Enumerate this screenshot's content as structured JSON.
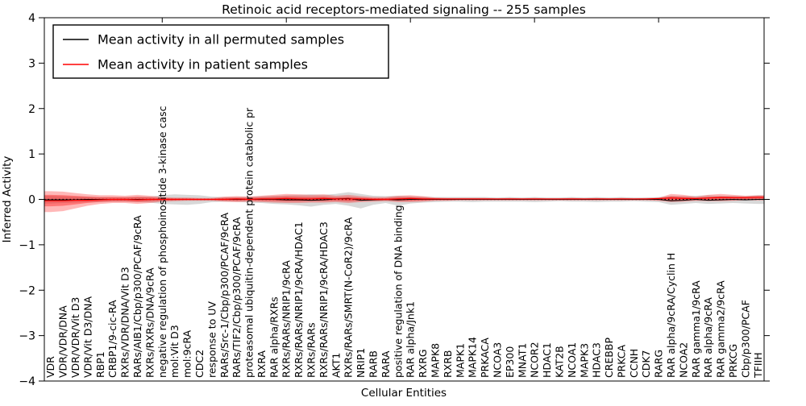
{
  "chart_data": {
    "type": "line",
    "title": "Retinoic acid receptors-mediated signaling -- 255 samples",
    "xlabel": "Cellular Entities",
    "ylabel": "Inferred Activity",
    "ylim": [
      -4,
      4
    ],
    "yticks": [
      -4,
      -3,
      -2,
      -1,
      0,
      1,
      2,
      3,
      4
    ],
    "grid": false,
    "legend_position": "upper left",
    "colors": {
      "permuted_line": "#000000",
      "patient_line": "#ff0000",
      "permuted_band": "#999999",
      "patient_band": "#ff0000",
      "zero_line": "#000000"
    },
    "categories": [
      "VDR",
      "VDR/VDR/DNA",
      "VDR/VDR/Vit D3",
      "VDR/Vit D3/DNA",
      "RBP1",
      "CRBP1/9-cic-RA",
      "RXRs/VDR/DNA/Vit D3",
      "RARs/AIB1/Cbp/p300/PCAF/9cRA",
      "RXRs/RXRs/DNA/9cRA",
      "negative regulation of phosphoinositide 3-kinase casc",
      "mol:Vit D3",
      "mol:9cRA",
      "CDC2",
      "response to UV",
      "RARs/Src-1/Cbp/p300/PCAF/9cRA",
      "RARs/TIF2/Cbp/p300/PCAF/9cRA",
      "proteasomal ubiquitin-dependent protein catabolic pr",
      "RXRA",
      "RAR alpha/RXRs",
      "RXRs/RARs/NRIP1/9cRA",
      "RXRs/RARs/NRIP1/9cRA/HDAC1",
      "RXRs/RARs",
      "RXRs/RARs/NRIP1/9cRA/HDAC3",
      "AKT1",
      "RXRs/RARs/SMRT(N-CoR2)/9cRA",
      "NRIP1",
      "RARB",
      "RARA",
      "positive regulation of DNA binding",
      "RAR alpha/Jnk1",
      "RXRG",
      "MAPK8",
      "RXRB",
      "MAPK1",
      "MAPK14",
      "PRKACA",
      "NCOA3",
      "EP300",
      "MNAT1",
      "NCOR2",
      "HDAC1",
      "KAT2B",
      "NCOA1",
      "MAPK3",
      "HDAC3",
      "CREBBP",
      "PRKCA",
      "CCNH",
      "CDK7",
      "RARG",
      "RAR alpha/9cRA/Cyclin H",
      "NCOA2",
      "RAR gamma1/9cRA",
      "RAR alpha/9cRA",
      "RAR gamma2/9cRA",
      "PRKCG",
      "Cbp/p300/PCAF",
      "TFIIH"
    ],
    "series": [
      {
        "name": "Mean activity in all permuted samples",
        "color": "#000000",
        "values": [
          -0.01,
          -0.01,
          -0.01,
          0,
          0,
          0,
          0,
          0,
          0,
          0,
          0,
          0,
          0,
          0,
          0,
          0,
          0,
          0,
          0,
          -0.01,
          -0.01,
          -0.02,
          -0.01,
          0.01,
          0.02,
          -0.02,
          -0.01,
          0,
          -0.01,
          0,
          0,
          0,
          0,
          0,
          0,
          0,
          0,
          0,
          0,
          0,
          0,
          0,
          0,
          0,
          0,
          0,
          0,
          0,
          0,
          0,
          -0.03,
          -0.02,
          0,
          -0.02,
          -0.01,
          0,
          -0.01,
          0
        ]
      },
      {
        "name": "Mean activity in patient samples",
        "color": "#ff0000",
        "values": [
          -0.03,
          -0.03,
          -0.02,
          -0.02,
          -0.01,
          0,
          0,
          -0.01,
          0,
          0,
          0,
          0,
          0,
          0,
          0,
          0.01,
          0,
          0.01,
          0.01,
          0.02,
          0.01,
          0.01,
          0.02,
          0.01,
          0.01,
          0.01,
          0,
          0,
          0.01,
          0.02,
          0.01,
          0.01,
          0.01,
          0.01,
          0.01,
          0.01,
          0.01,
          0.01,
          0.01,
          0.01,
          0.01,
          0.01,
          0.01,
          0.01,
          0.01,
          0.01,
          0.01,
          0.01,
          0.01,
          0.02,
          0.03,
          0.02,
          0.02,
          0.03,
          0.04,
          0.04,
          0.04,
          0.05
        ]
      }
    ],
    "bands": [
      {
        "name": "permuted-samples-range",
        "color": "#999999",
        "opacity": 0.38,
        "upper": [
          0.08,
          0.07,
          0.06,
          0.06,
          0.05,
          0.05,
          0.05,
          0.06,
          0.06,
          0.09,
          0.11,
          0.1,
          0.09,
          0.06,
          0.05,
          0.05,
          0.06,
          0.07,
          0.08,
          0.09,
          0.1,
          0.11,
          0.1,
          0.12,
          0.16,
          0.12,
          0.08,
          0.07,
          0.08,
          0.07,
          0.06,
          0.05,
          0.05,
          0.05,
          0.05,
          0.05,
          0.04,
          0.05,
          0.04,
          0.05,
          0.04,
          0.04,
          0.05,
          0.04,
          0.05,
          0.04,
          0.05,
          0.04,
          0.04,
          0.05,
          0.08,
          0.07,
          0.08,
          0.09,
          0.08,
          0.08,
          0.07,
          0.09
        ],
        "lower": [
          -0.09,
          -0.08,
          -0.07,
          -0.06,
          -0.06,
          -0.05,
          -0.05,
          -0.06,
          -0.07,
          -0.1,
          -0.11,
          -0.12,
          -0.1,
          -0.06,
          -0.05,
          -0.05,
          -0.07,
          -0.08,
          -0.1,
          -0.11,
          -0.13,
          -0.16,
          -0.12,
          -0.1,
          -0.14,
          -0.2,
          -0.12,
          -0.08,
          -0.14,
          -0.09,
          -0.07,
          -0.06,
          -0.05,
          -0.05,
          -0.06,
          -0.05,
          -0.05,
          -0.05,
          -0.05,
          -0.06,
          -0.05,
          -0.04,
          -0.05,
          -0.05,
          -0.06,
          -0.05,
          -0.05,
          -0.04,
          -0.05,
          -0.06,
          -0.12,
          -0.1,
          -0.08,
          -0.1,
          -0.09,
          -0.08,
          -0.09,
          -0.1
        ]
      },
      {
        "name": "patient-samples-range",
        "color": "#ff0000",
        "opacity": 0.28,
        "inner_band_scale": 0.55,
        "inner_band_opacity": 0.35,
        "upper": [
          0.18,
          0.17,
          0.14,
          0.11,
          0.09,
          0.09,
          0.08,
          0.1,
          0.08,
          0.05,
          0.04,
          0.04,
          0.03,
          0.03,
          0.06,
          0.07,
          0.06,
          0.08,
          0.1,
          0.12,
          0.11,
          0.1,
          0.11,
          0.08,
          0.1,
          0.07,
          0.05,
          0.05,
          0.08,
          0.09,
          0.07,
          0.04,
          0.03,
          0.03,
          0.03,
          0.03,
          0.02,
          0.03,
          0.02,
          0.03,
          0.02,
          0.02,
          0.03,
          0.02,
          0.03,
          0.02,
          0.03,
          0.02,
          0.03,
          0.03,
          0.12,
          0.1,
          0.06,
          0.1,
          0.12,
          0.1,
          0.08,
          0.09
        ],
        "lower": [
          -0.28,
          -0.26,
          -0.2,
          -0.14,
          -0.1,
          -0.08,
          -0.08,
          -0.1,
          -0.08,
          -0.05,
          -0.04,
          -0.03,
          -0.03,
          -0.03,
          -0.05,
          -0.06,
          -0.05,
          -0.06,
          -0.07,
          -0.08,
          -0.08,
          -0.07,
          -0.07,
          -0.06,
          -0.08,
          -0.06,
          -0.05,
          -0.04,
          -0.06,
          -0.06,
          -0.05,
          -0.03,
          -0.03,
          -0.02,
          -0.02,
          -0.02,
          -0.02,
          -0.02,
          -0.02,
          -0.02,
          -0.02,
          -0.02,
          -0.02,
          -0.02,
          -0.02,
          -0.02,
          -0.02,
          -0.02,
          -0.02,
          -0.03,
          -0.06,
          -0.05,
          -0.03,
          -0.04,
          -0.04,
          -0.03,
          -0.02,
          -0.02
        ]
      }
    ],
    "zero_line": 0
  }
}
